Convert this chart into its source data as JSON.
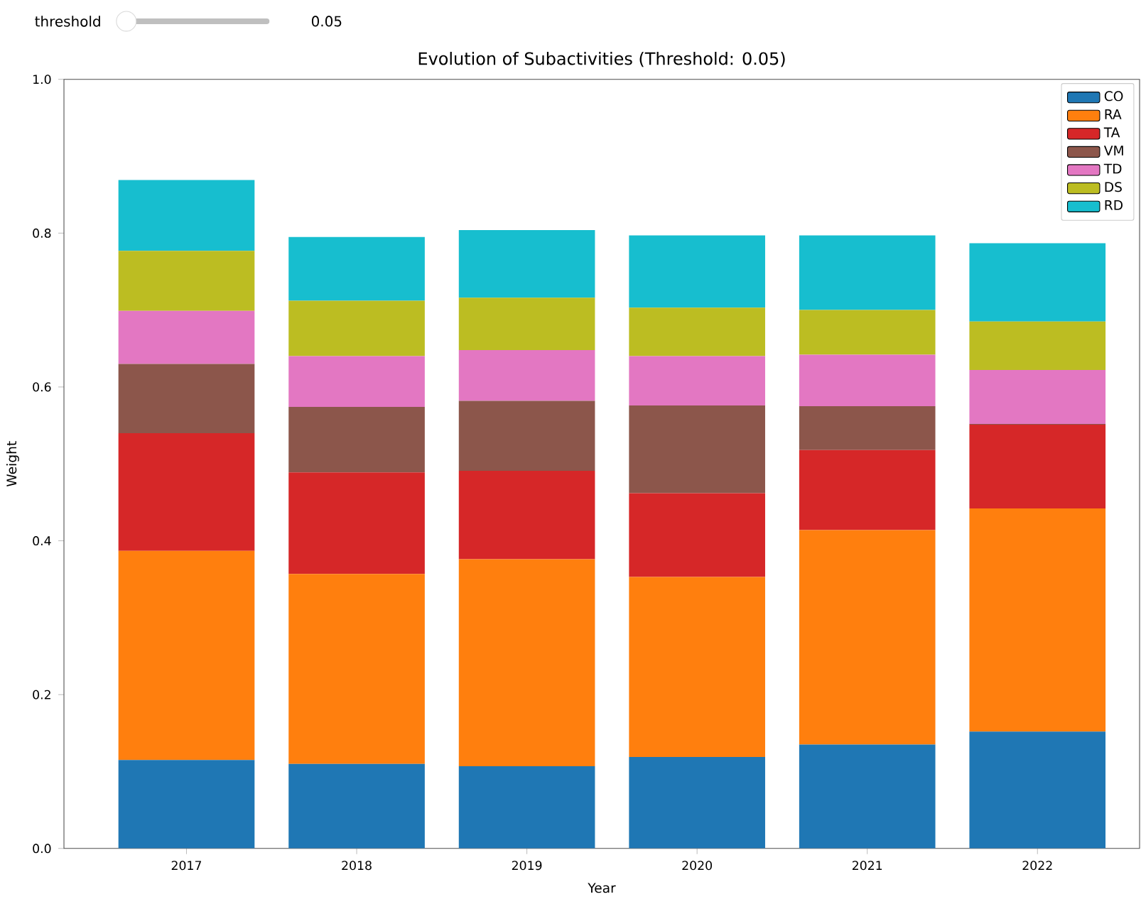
{
  "chart_data": {
    "type": "bar",
    "stacked": true,
    "title": "Evolution of Subactivities (Threshold: 0.05)",
    "xlabel": "Year",
    "ylabel": "Weight",
    "categories": [
      "2017",
      "2018",
      "2019",
      "2020",
      "2021",
      "2022"
    ],
    "series": [
      {
        "name": "CO",
        "color": "#1f77b4",
        "values": [
          0.115,
          0.11,
          0.107,
          0.119,
          0.135,
          0.152
        ]
      },
      {
        "name": "RA",
        "color": "#ff7f0e",
        "values": [
          0.272,
          0.247,
          0.269,
          0.234,
          0.279,
          0.29
        ]
      },
      {
        "name": "TA",
        "color": "#d62728",
        "values": [
          0.153,
          0.132,
          0.115,
          0.109,
          0.104,
          0.109
        ]
      },
      {
        "name": "VM",
        "color": "#8c564b",
        "values": [
          0.09,
          0.085,
          0.091,
          0.114,
          0.057,
          0.001
        ]
      },
      {
        "name": "TD",
        "color": "#e377c2",
        "values": [
          0.069,
          0.066,
          0.066,
          0.064,
          0.067,
          0.07
        ]
      },
      {
        "name": "DS",
        "color": "#bcbd22",
        "values": [
          0.078,
          0.072,
          0.068,
          0.063,
          0.058,
          0.063
        ]
      },
      {
        "name": "RD",
        "color": "#17becf",
        "values": [
          0.092,
          0.083,
          0.088,
          0.094,
          0.097,
          0.102
        ]
      }
    ],
    "ylim": [
      0,
      1
    ],
    "yticks": [
      {
        "value": 0,
        "label": "0.0"
      },
      0.2,
      0.4,
      0.6,
      0.8,
      {
        "value": 1,
        "label": "1.0"
      }
    ],
    "grid": false,
    "legend": "top right",
    "annotations": [
      "threshold",
      "0.05"
    ]
  }
}
